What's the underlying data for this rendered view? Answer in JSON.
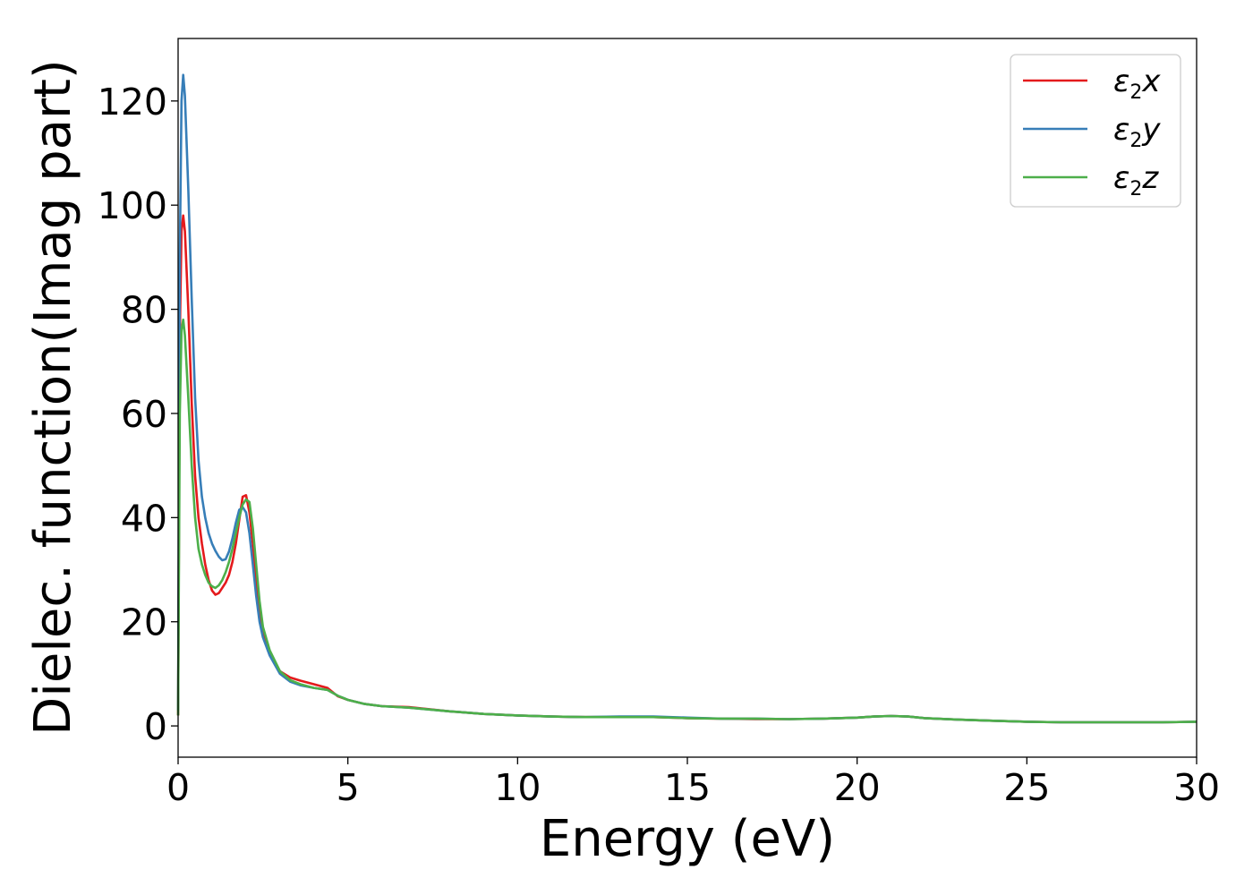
{
  "chart_data": {
    "type": "line",
    "title": "",
    "xlabel": "Energy (eV)",
    "ylabel": "Dielec. function(Imag part)",
    "xlim": [
      0,
      30
    ],
    "ylim": [
      -6,
      132
    ],
    "x_ticks": [
      0,
      5,
      10,
      15,
      20,
      25,
      30
    ],
    "x_tick_labels": [
      "0",
      "5",
      "10",
      "15",
      "20",
      "25",
      "30"
    ],
    "y_ticks": [
      0,
      20,
      40,
      60,
      80,
      100,
      120
    ],
    "y_tick_labels": [
      "0",
      "20",
      "40",
      "60",
      "80",
      "100",
      "120"
    ],
    "grid": false,
    "legend_position": "top-right",
    "series": [
      {
        "name": "ε2x",
        "legend": {
          "base": "ε",
          "sub": "2",
          "tail": "x"
        },
        "color": "#e41a1c",
        "x": [
          0,
          0.05,
          0.1,
          0.15,
          0.2,
          0.3,
          0.4,
          0.5,
          0.6,
          0.7,
          0.8,
          0.9,
          1.0,
          1.1,
          1.2,
          1.3,
          1.4,
          1.5,
          1.6,
          1.7,
          1.8,
          1.9,
          2.0,
          2.1,
          2.2,
          2.3,
          2.4,
          2.5,
          2.7,
          3.0,
          3.3,
          3.6,
          4.0,
          4.4,
          4.7,
          5.0,
          5.5,
          6.0,
          6.8,
          8.0,
          9.0,
          10.0,
          11.0,
          12.0,
          13.0,
          14.0,
          15.0,
          16.0,
          17.0,
          18.0,
          19.0,
          20.0,
          20.5,
          21.0,
          21.5,
          22.0,
          23.0,
          24.0,
          25.0,
          26.0,
          27.0,
          28.0,
          29.0,
          30.0
        ],
        "values": [
          2,
          75,
          95,
          98,
          95,
          80,
          62,
          48,
          40,
          35,
          31,
          28,
          26,
          25.2,
          25.5,
          26.5,
          27.5,
          29,
          31.5,
          35,
          39.5,
          44,
          44.3,
          41,
          35,
          28,
          22,
          18,
          14,
          10.5,
          9.3,
          8.7,
          8,
          7.3,
          5.7,
          5,
          4.2,
          3.8,
          3.6,
          2.8,
          2.3,
          2.0,
          1.8,
          1.7,
          1.7,
          1.7,
          1.5,
          1.4,
          1.3,
          1.3,
          1.4,
          1.6,
          1.8,
          1.9,
          1.8,
          1.5,
          1.2,
          1.0,
          0.8,
          0.7,
          0.7,
          0.7,
          0.7,
          0.8
        ]
      },
      {
        "name": "ε2y",
        "legend": {
          "base": "ε",
          "sub": "2",
          "tail": "y"
        },
        "color": "#377eb8",
        "x": [
          0,
          0.05,
          0.1,
          0.15,
          0.2,
          0.3,
          0.4,
          0.5,
          0.6,
          0.7,
          0.8,
          0.9,
          1.0,
          1.1,
          1.2,
          1.3,
          1.4,
          1.5,
          1.6,
          1.7,
          1.8,
          1.9,
          2.0,
          2.1,
          2.2,
          2.3,
          2.4,
          2.5,
          2.7,
          3.0,
          3.3,
          3.6,
          4.0,
          4.4,
          4.7,
          5.0,
          5.5,
          6.0,
          6.8,
          8.0,
          9.0,
          10.0,
          11.0,
          12.0,
          13.0,
          14.0,
          15.0,
          16.0,
          17.0,
          18.0,
          19.0,
          20.0,
          20.5,
          21.0,
          21.5,
          22.0,
          23.0,
          24.0,
          25.0,
          26.0,
          27.0,
          28.0,
          29.0,
          30.0
        ],
        "values": [
          3,
          90,
          120,
          125,
          121,
          103,
          82,
          63,
          51,
          44,
          40,
          37,
          35,
          33.6,
          32.5,
          31.8,
          32,
          33.5,
          36,
          39,
          41.5,
          42,
          41,
          37,
          31,
          25,
          20,
          17,
          13.5,
          10,
          8.5,
          7.8,
          7.3,
          6.9,
          5.8,
          5.0,
          4.2,
          3.8,
          3.5,
          2.8,
          2.3,
          2.0,
          1.8,
          1.7,
          1.8,
          1.8,
          1.6,
          1.4,
          1.4,
          1.3,
          1.4,
          1.6,
          1.8,
          1.9,
          1.8,
          1.5,
          1.2,
          1.0,
          0.8,
          0.7,
          0.7,
          0.7,
          0.7,
          0.8
        ]
      },
      {
        "name": "ε2z",
        "legend": {
          "base": "ε",
          "sub": "2",
          "tail": "z"
        },
        "color": "#4daf4a",
        "x": [
          0,
          0.05,
          0.1,
          0.15,
          0.2,
          0.3,
          0.4,
          0.5,
          0.6,
          0.7,
          0.8,
          0.9,
          1.0,
          1.1,
          1.2,
          1.3,
          1.4,
          1.5,
          1.6,
          1.7,
          1.8,
          1.9,
          2.0,
          2.1,
          2.2,
          2.3,
          2.4,
          2.5,
          2.7,
          3.0,
          3.3,
          3.6,
          4.0,
          4.4,
          4.7,
          5.0,
          5.5,
          6.0,
          6.8,
          8.0,
          9.0,
          10.0,
          11.0,
          12.0,
          13.0,
          14.0,
          15.0,
          16.0,
          17.0,
          18.0,
          19.0,
          20.0,
          20.5,
          21.0,
          21.5,
          22.0,
          23.0,
          24.0,
          25.0,
          26.0,
          27.0,
          28.0,
          29.0,
          30.0
        ],
        "values": [
          2,
          60,
          76,
          78,
          75,
          63,
          50,
          40,
          34,
          31,
          29,
          27.5,
          26.8,
          26.5,
          27,
          28,
          29.5,
          31.5,
          34,
          37,
          40,
          42.5,
          43.5,
          43,
          38,
          31,
          24,
          19,
          14.5,
          10.5,
          8.8,
          8.0,
          7.3,
          6.9,
          5.8,
          5.0,
          4.2,
          3.8,
          3.5,
          2.8,
          2.3,
          2.0,
          1.8,
          1.7,
          1.7,
          1.7,
          1.5,
          1.4,
          1.4,
          1.3,
          1.4,
          1.6,
          1.8,
          1.9,
          1.8,
          1.5,
          1.2,
          1.0,
          0.8,
          0.7,
          0.7,
          0.7,
          0.7,
          0.8
        ]
      }
    ]
  }
}
